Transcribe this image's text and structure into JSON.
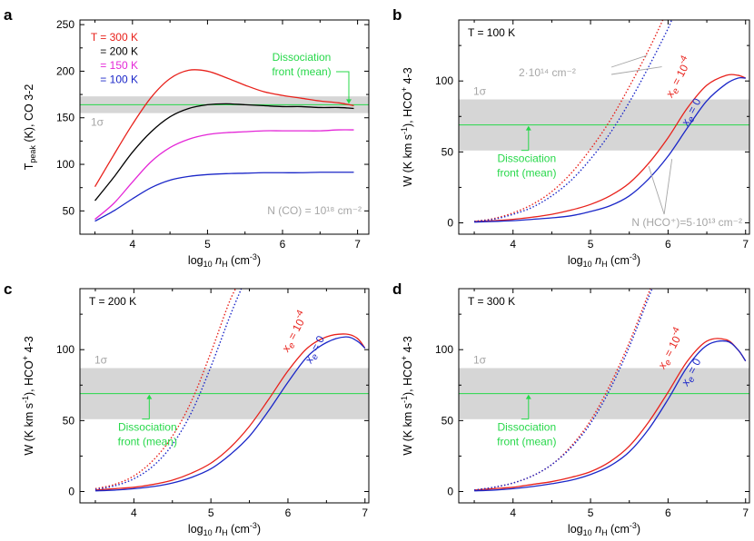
{
  "chart_data": [
    {
      "panel": "a",
      "type": "line",
      "xlabel": "log10 nH (cm-3)",
      "ylabel": "Tpeak (K), CO 3-2",
      "xlim": [
        3.3,
        7.15
      ],
      "ylim": [
        25,
        255
      ],
      "xticks": [
        4,
        5,
        6,
        7
      ],
      "yticks": [
        50,
        100,
        150,
        200,
        250
      ],
      "band": {
        "label": "1σ",
        "y0": 155,
        "y1": 173,
        "color": "#d6d6d6"
      },
      "front_line": {
        "y": 164,
        "color": "#27d84a"
      },
      "annotations": {
        "front_label_1": "Dissociation",
        "front_label_2": "front (mean)",
        "column": "N (CO) = 10¹⁸ cm⁻²"
      },
      "legend": [
        {
          "label": "T = 300 K",
          "color": "#e8211b"
        },
        {
          "label": "= 200 K",
          "color": "#000000"
        },
        {
          "label": "= 150 K",
          "color": "#e426d7"
        },
        {
          "label": "= 100 K",
          "color": "#1a26c8"
        }
      ],
      "series": [
        {
          "name": "300 K",
          "color": "#e8211b",
          "dashed": false,
          "x": [
            3.5,
            3.75,
            4.0,
            4.25,
            4.5,
            4.75,
            5.0,
            5.25,
            5.5,
            5.75,
            6.0,
            6.25,
            6.5,
            6.75,
            6.95
          ],
          "y": [
            76,
            110,
            143,
            172,
            192,
            201,
            200,
            193,
            185,
            178,
            174,
            171,
            168,
            166,
            163
          ]
        },
        {
          "name": "200 K",
          "color": "#000000",
          "dashed": false,
          "x": [
            3.5,
            3.75,
            4.0,
            4.25,
            4.5,
            4.75,
            5.0,
            5.25,
            5.5,
            5.75,
            6.0,
            6.25,
            6.5,
            6.75,
            6.95
          ],
          "y": [
            61,
            86,
            113,
            135,
            151,
            160,
            164,
            165,
            164,
            163,
            162,
            162,
            161,
            161,
            160
          ]
        },
        {
          "name": "150 K",
          "color": "#e426d7",
          "dashed": false,
          "x": [
            3.5,
            3.75,
            4.0,
            4.25,
            4.5,
            4.75,
            5.0,
            5.25,
            5.5,
            5.75,
            6.0,
            6.25,
            6.5,
            6.75,
            6.95
          ],
          "y": [
            41,
            58,
            81,
            103,
            118,
            127,
            132,
            134,
            135,
            136,
            136,
            136,
            136,
            137,
            137
          ]
        },
        {
          "name": "100 K",
          "color": "#1a26c8",
          "dashed": false,
          "x": [
            3.5,
            3.75,
            4.0,
            4.25,
            4.5,
            4.75,
            5.0,
            5.25,
            5.5,
            5.75,
            6.0,
            6.25,
            6.5,
            6.75,
            6.95
          ],
          "y": [
            39,
            50,
            63,
            75,
            83,
            87,
            89,
            90,
            90.5,
            91,
            91,
            91,
            91.5,
            91.5,
            91.5
          ]
        }
      ]
    },
    {
      "panel": "b",
      "type": "line",
      "xlabel": "log10 nH (cm-3)",
      "ylabel": "W (K km s-1), HCO+ 4-3",
      "xlim": [
        3.3,
        7.05
      ],
      "ylim": [
        -8,
        143
      ],
      "xticks": [
        4,
        5,
        6,
        7
      ],
      "yticks": [
        0,
        50,
        100
      ],
      "band": {
        "label": "1σ",
        "y0": 51,
        "y1": 87,
        "color": "#d6d6d6"
      },
      "front_line": {
        "y": 69,
        "color": "#27d84a"
      },
      "annotations": {
        "temperature": "T = 100 K",
        "front_label_1": "Dissociation",
        "front_label_2": "front (mean)",
        "dotted_column": "2·10¹⁴ cm⁻²",
        "solid_column": "N (HCO⁺)=5·10¹³ cm⁻²",
        "xe_red": "xₑ = 10⁻⁴",
        "xe_blue": "xₑ = 0"
      },
      "series": [
        {
          "name": "xe=1e-4, N=5e13",
          "color": "#e8211b",
          "dashed": false,
          "x": [
            3.5,
            3.75,
            4.0,
            4.25,
            4.5,
            4.75,
            5.0,
            5.25,
            5.5,
            5.75,
            6.0,
            6.25,
            6.5,
            6.75,
            6.9,
            7.0
          ],
          "y": [
            1,
            1.5,
            2.5,
            4,
            6,
            9,
            13,
            19,
            28,
            42,
            60,
            81,
            97,
            104,
            104,
            102
          ]
        },
        {
          "name": "xe=0, N=5e13",
          "color": "#1a26c8",
          "dashed": false,
          "x": [
            3.5,
            3.75,
            4.0,
            4.25,
            4.5,
            4.75,
            5.0,
            5.25,
            5.5,
            5.75,
            6.0,
            6.25,
            6.5,
            6.75,
            6.9,
            7.0
          ],
          "y": [
            0.5,
            1,
            1.5,
            2.5,
            3.5,
            5,
            8,
            12,
            19,
            31,
            47,
            67,
            86,
            98,
            102,
            102
          ]
        },
        {
          "name": "xe=1e-4, N=2e14",
          "color": "#e8211b",
          "dashed": true,
          "x": [
            3.5,
            3.75,
            4.0,
            4.25,
            4.5,
            4.75,
            5.0,
            5.25,
            5.5,
            5.75,
            5.95
          ],
          "y": [
            1,
            3,
            7,
            13,
            22,
            35,
            52,
            72,
            96,
            122,
            145
          ]
        },
        {
          "name": "xe=0, N=2e14",
          "color": "#1a26c8",
          "dashed": true,
          "x": [
            3.5,
            3.75,
            4.0,
            4.25,
            4.5,
            4.75,
            5.0,
            5.25,
            5.5,
            5.75,
            6.0,
            6.05
          ],
          "y": [
            1,
            2.5,
            6,
            11,
            19,
            30,
            45,
            63,
            85,
            110,
            137,
            144
          ]
        }
      ]
    },
    {
      "panel": "c",
      "type": "line",
      "xlabel": "log10 nH (cm-3)",
      "ylabel": "W (K km s-1), HCO+ 4-3",
      "xlim": [
        3.3,
        7.05
      ],
      "ylim": [
        -8,
        143
      ],
      "xticks": [
        4,
        5,
        6,
        7
      ],
      "yticks": [
        0,
        50,
        100
      ],
      "band": {
        "label": "1σ",
        "y0": 51,
        "y1": 87,
        "color": "#d6d6d6"
      },
      "front_line": {
        "y": 69,
        "color": "#27d84a"
      },
      "annotations": {
        "temperature": "T = 200 K",
        "front_label_1": "Dissociation",
        "front_label_2": "front (mean)",
        "xe_red": "xₑ = 10⁻⁴",
        "xe_blue": "xₑ = 0"
      },
      "series": [
        {
          "name": "xe=1e-4, N=5e13",
          "color": "#e8211b",
          "dashed": false,
          "x": [
            3.5,
            3.75,
            4.0,
            4.25,
            4.5,
            4.75,
            5.0,
            5.25,
            5.5,
            5.75,
            6.0,
            6.25,
            6.5,
            6.75,
            6.9,
            7.0
          ],
          "y": [
            1,
            2,
            3,
            5,
            8,
            13,
            20,
            31,
            46,
            65,
            85,
            101,
            109,
            111,
            108,
            101
          ]
        },
        {
          "name": "xe=0, N=5e13",
          "color": "#1a26c8",
          "dashed": false,
          "x": [
            3.5,
            3.75,
            4.0,
            4.25,
            4.5,
            4.75,
            5.0,
            5.25,
            5.5,
            5.75,
            6.0,
            6.25,
            6.5,
            6.75,
            6.9,
            7.0
          ],
          "y": [
            0.5,
            1,
            2,
            3.5,
            6,
            10,
            16,
            26,
            39,
            57,
            77,
            95,
            105,
            109,
            106,
            101
          ]
        },
        {
          "name": "xe=1e-4, N=2e14",
          "color": "#e8211b",
          "dashed": true,
          "x": [
            3.5,
            3.75,
            4.0,
            4.25,
            4.5,
            4.75,
            5.0,
            5.25,
            5.4
          ],
          "y": [
            2,
            5,
            11,
            22,
            39,
            64,
            98,
            135,
            150
          ]
        },
        {
          "name": "xe=0, N=2e14",
          "color": "#1a26c8",
          "dashed": true,
          "x": [
            3.5,
            3.75,
            4.0,
            4.25,
            4.5,
            4.75,
            5.0,
            5.25,
            5.45
          ],
          "y": [
            1.5,
            4,
            9,
            18,
            33,
            56,
            88,
            124,
            150
          ]
        }
      ]
    },
    {
      "panel": "d",
      "type": "line",
      "xlabel": "log10 nH (cm-3)",
      "ylabel": "W (K km s-1), HCO+ 4-3",
      "xlim": [
        3.3,
        7.05
      ],
      "ylim": [
        -8,
        143
      ],
      "xticks": [
        4,
        5,
        6,
        7
      ],
      "yticks": [
        0,
        50,
        100
      ],
      "band": {
        "label": "1σ",
        "y0": 51,
        "y1": 87,
        "color": "#d6d6d6"
      },
      "front_line": {
        "y": 69,
        "color": "#27d84a"
      },
      "annotations": {
        "temperature": "T = 300 K",
        "front_label_1": "Dissociation",
        "front_label_2": "front (mean)",
        "xe_red": "xₑ = 10⁻⁴",
        "xe_blue": "xₑ = 0"
      },
      "series": [
        {
          "name": "xe=1e-4, N=5e13",
          "color": "#e8211b",
          "dashed": false,
          "x": [
            3.5,
            3.75,
            4.0,
            4.25,
            4.5,
            4.75,
            5.0,
            5.25,
            5.5,
            5.75,
            6.0,
            6.25,
            6.5,
            6.75,
            6.9,
            7.0
          ],
          "y": [
            1,
            2,
            3,
            5,
            7,
            10,
            14,
            21,
            32,
            49,
            70,
            92,
            106,
            107,
            100,
            92
          ]
        },
        {
          "name": "xe=0, N=5e13",
          "color": "#1a26c8",
          "dashed": false,
          "x": [
            3.5,
            3.75,
            4.0,
            4.25,
            4.5,
            4.75,
            5.0,
            5.25,
            5.5,
            5.75,
            6.0,
            6.25,
            6.5,
            6.75,
            6.9,
            7.0
          ],
          "y": [
            0.5,
            1,
            2,
            3.5,
            5.5,
            8,
            12,
            18,
            28,
            44,
            65,
            88,
            103,
            106,
            100,
            92
          ]
        },
        {
          "name": "xe=1e-4, N=2e14",
          "color": "#e8211b",
          "dashed": true,
          "x": [
            3.5,
            3.75,
            4.0,
            4.25,
            4.5,
            4.75,
            5.0,
            5.25,
            5.5,
            5.75,
            5.82
          ],
          "y": [
            1,
            3,
            6,
            11,
            19,
            32,
            50,
            75,
            105,
            140,
            150
          ]
        },
        {
          "name": "xe=0, N=2e14",
          "color": "#1a26c8",
          "dashed": true,
          "x": [
            3.5,
            3.75,
            4.0,
            4.25,
            4.5,
            4.75,
            5.0,
            5.25,
            5.5,
            5.75,
            5.85
          ],
          "y": [
            1,
            3,
            6,
            11,
            19,
            31,
            48,
            72,
            102,
            137,
            150
          ]
        }
      ]
    }
  ]
}
